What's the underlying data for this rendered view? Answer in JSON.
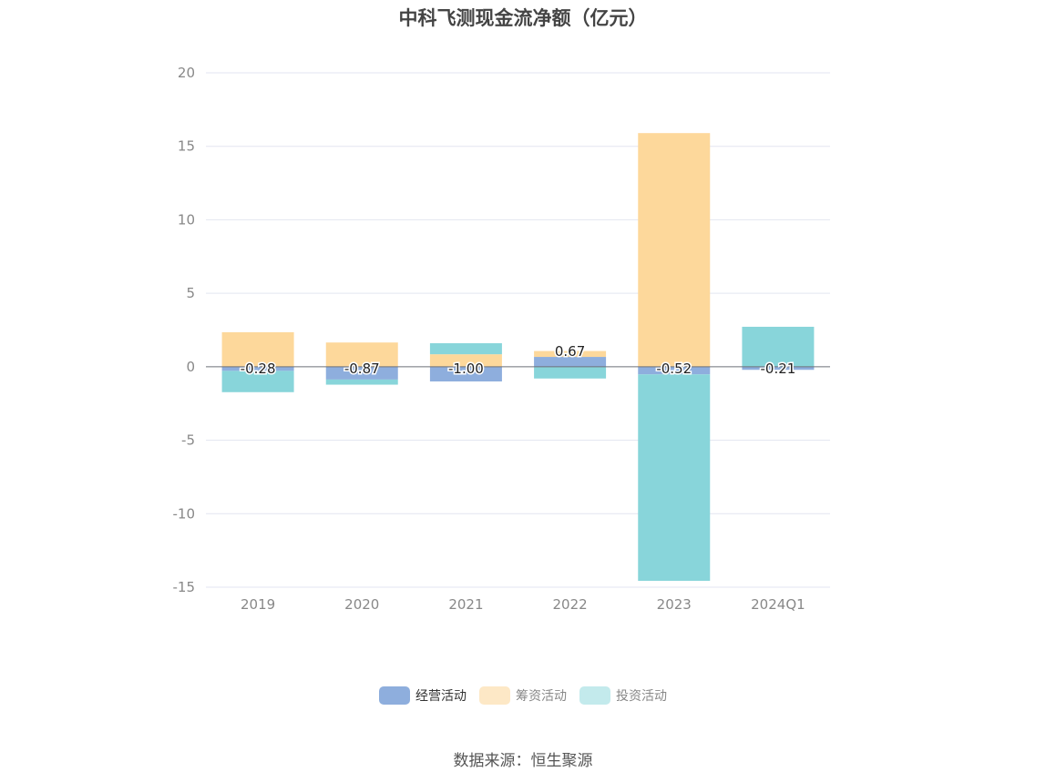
{
  "title": "中科飞测现金流净额（亿元）",
  "source": "数据来源：恒生聚源",
  "colors": {
    "operating": "#8eaedd",
    "financing": "#fdd89b",
    "financing_legend": "#fde8c6",
    "investing": "#88d5da",
    "investing_legend": "#c3eaec",
    "grid": "#e3e6f0",
    "axis_text": "#888888"
  },
  "chart_data": {
    "type": "bar",
    "stacked": true,
    "title": "中科飞测现金流净额（亿元）",
    "xlabel": "",
    "ylabel": "",
    "ylim": [
      -15,
      20
    ],
    "yticks": [
      20,
      15,
      10,
      5,
      0,
      -5,
      -10,
      -15
    ],
    "grid": true,
    "legend_position": "bottom-center",
    "categories": [
      "2019",
      "2020",
      "2021",
      "2022",
      "2023",
      "2024Q1"
    ],
    "series": [
      {
        "name": "经营活动",
        "key": "operating",
        "values": [
          -0.28,
          -0.87,
          -1.0,
          0.67,
          -0.52,
          -0.21
        ]
      },
      {
        "name": "筹资活动",
        "key": "financing",
        "values": [
          2.35,
          1.65,
          0.85,
          0.4,
          15.9,
          0.0
        ]
      },
      {
        "name": "投资活动",
        "key": "investing",
        "values": [
          -1.45,
          -0.35,
          0.75,
          -0.8,
          -14.05,
          2.72
        ]
      }
    ],
    "data_labels": [
      "-0.28",
      "-0.87",
      "-1.00",
      "0.67",
      "-0.52",
      "-0.21"
    ]
  }
}
